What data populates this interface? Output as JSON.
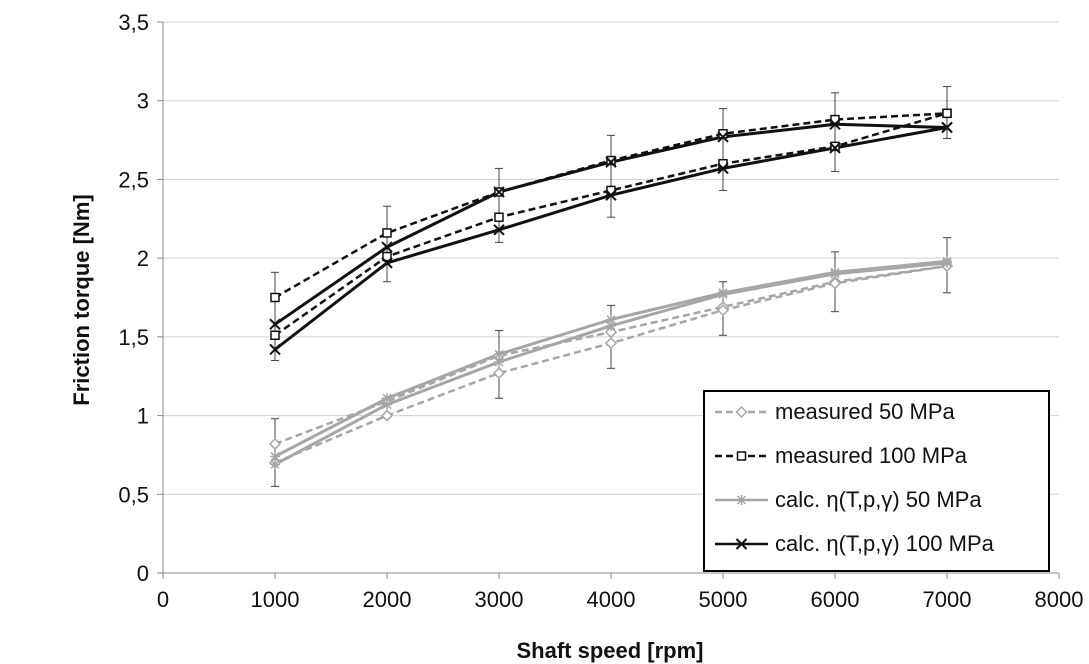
{
  "chart_data": {
    "type": "line",
    "xlabel": "Shaft speed [rpm]",
    "ylabel": "Friction torque [Nm]",
    "xlim": [
      0,
      8000
    ],
    "ylim": [
      0,
      3.5
    ],
    "xticks": [
      "0",
      "1000",
      "2000",
      "3000",
      "4000",
      "5000",
      "6000",
      "7000",
      "8000"
    ],
    "yticks": [
      "0",
      "0,5",
      "1",
      "1,5",
      "2",
      "2,5",
      "3",
      "3,5"
    ],
    "grid": "horizontal",
    "legend_position": "bottom-right",
    "series": [
      {
        "name": "measured 50 MPa",
        "color": "#a6a6a6",
        "dash": "dashed",
        "marker": "diamond",
        "branches": [
          {
            "x": [
              1000,
              2000,
              3000,
              4000,
              5000,
              6000,
              7000
            ],
            "y": [
              0.82,
              1.09,
              1.38,
              1.53,
              1.69,
              1.85,
              1.95
            ]
          },
          {
            "x": [
              1000,
              2000,
              3000,
              4000,
              5000,
              6000,
              7000
            ],
            "y": [
              0.7,
              1.0,
              1.27,
              1.46,
              1.67,
              1.84,
              1.95
            ]
          }
        ],
        "error_bars": [
          {
            "x": 1000,
            "low": 0.55,
            "high": 0.98
          },
          {
            "x": 3000,
            "low": 1.11,
            "high": 1.54
          },
          {
            "x": 4000,
            "low": 1.3,
            "high": 1.7
          },
          {
            "x": 5000,
            "low": 1.51,
            "high": 1.85
          },
          {
            "x": 6000,
            "low": 1.66,
            "high": 2.04
          },
          {
            "x": 7000,
            "low": 1.78,
            "high": 2.13
          }
        ]
      },
      {
        "name": "measured 100 MPa",
        "color": "#111111",
        "dash": "dashed",
        "marker": "square",
        "branches": [
          {
            "x": [
              1000,
              2000,
              3000,
              4000,
              5000,
              6000,
              7000
            ],
            "y": [
              1.75,
              2.16,
              2.42,
              2.62,
              2.79,
              2.88,
              2.92
            ]
          },
          {
            "x": [
              1000,
              2000,
              3000,
              4000,
              5000,
              6000,
              7000
            ],
            "y": [
              1.51,
              2.01,
              2.26,
              2.43,
              2.6,
              2.71,
              2.92
            ]
          }
        ],
        "error_bars": [
          {
            "x": 1000,
            "low": 1.35,
            "high": 1.91
          },
          {
            "x": 2000,
            "low": 1.85,
            "high": 2.33
          },
          {
            "x": 3000,
            "low": 2.1,
            "high": 2.57
          },
          {
            "x": 4000,
            "low": 2.26,
            "high": 2.78
          },
          {
            "x": 5000,
            "low": 2.43,
            "high": 2.95
          },
          {
            "x": 6000,
            "low": 2.55,
            "high": 3.05
          },
          {
            "x": 7000,
            "low": 2.76,
            "high": 3.09
          }
        ]
      },
      {
        "name": "calc. η(T,p,γ) 50 MPa",
        "color": "#a6a6a6",
        "dash": "solid",
        "marker": "asterisk",
        "branches": [
          {
            "x": [
              1000,
              2000,
              3000,
              4000,
              5000,
              6000,
              7000
            ],
            "y": [
              0.74,
              1.11,
              1.39,
              1.61,
              1.78,
              1.91,
              1.98
            ]
          },
          {
            "x": [
              1000,
              2000,
              3000,
              4000,
              5000,
              6000,
              7000
            ],
            "y": [
              0.69,
              1.07,
              1.34,
              1.57,
              1.77,
              1.9,
              1.97
            ]
          }
        ]
      },
      {
        "name": "calc. η(T,p,γ) 100 MPa",
        "color": "#111111",
        "dash": "solid",
        "marker": "x",
        "branches": [
          {
            "x": [
              1000,
              2000,
              3000,
              4000,
              5000,
              6000,
              7000
            ],
            "y": [
              1.58,
              2.07,
              2.42,
              2.61,
              2.77,
              2.85,
              2.83
            ]
          },
          {
            "x": [
              1000,
              2000,
              3000,
              4000,
              5000,
              6000,
              7000
            ],
            "y": [
              1.42,
              1.97,
              2.18,
              2.4,
              2.57,
              2.7,
              2.83
            ]
          }
        ]
      }
    ]
  }
}
